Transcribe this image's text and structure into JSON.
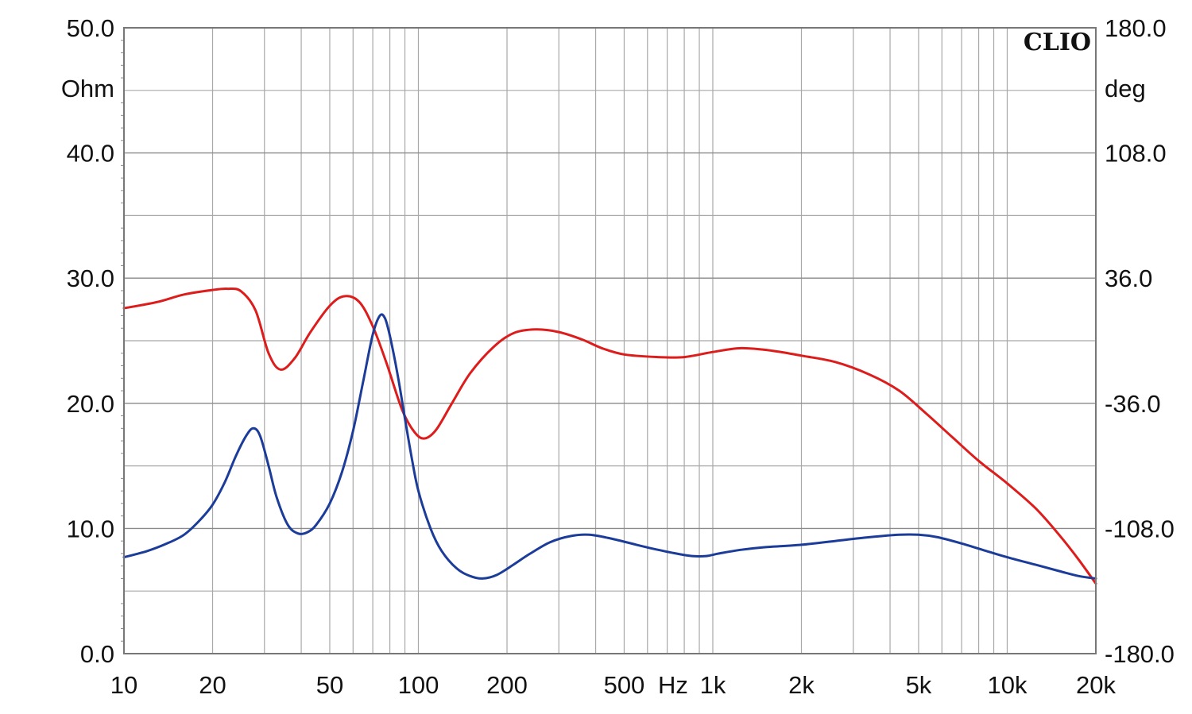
{
  "brand": "CLIO",
  "chart_data": {
    "type": "line",
    "title": "",
    "x_scale": "log",
    "xlim": [
      10,
      20000
    ],
    "x_ticks": [
      {
        "value": 10,
        "label": "10"
      },
      {
        "value": 20,
        "label": "20"
      },
      {
        "value": 50,
        "label": "50"
      },
      {
        "value": 100,
        "label": "100"
      },
      {
        "value": 200,
        "label": "200"
      },
      {
        "value": 500,
        "label": "500"
      },
      {
        "value": 1000,
        "label": "1k"
      },
      {
        "value": 2000,
        "label": "2k"
      },
      {
        "value": 5000,
        "label": "5k"
      },
      {
        "value": 10000,
        "label": "10k"
      },
      {
        "value": 20000,
        "label": "20k"
      }
    ],
    "x_unit_label": "Hz",
    "y_left": {
      "unit": "Ohm",
      "ylim": [
        0,
        50
      ],
      "ticks": [
        {
          "value": 0,
          "label": "0.0"
        },
        {
          "value": 10,
          "label": "10.0"
        },
        {
          "value": 20,
          "label": "20.0"
        },
        {
          "value": 30,
          "label": "30.0"
        },
        {
          "value": 40,
          "label": "40.0"
        },
        {
          "value": 50,
          "label": "50.0"
        }
      ],
      "minor_step": 5
    },
    "y_right": {
      "unit": "deg",
      "ylim": [
        -180,
        180
      ],
      "ticks": [
        {
          "value": -180,
          "label": "-180.0"
        },
        {
          "value": -108,
          "label": "-108.0"
        },
        {
          "value": -36,
          "label": "-36.0"
        },
        {
          "value": 36,
          "label": "36.0"
        },
        {
          "value": 108,
          "label": "108.0"
        },
        {
          "value": 180,
          "label": "180.0"
        }
      ]
    },
    "grid": true,
    "series": [
      {
        "color": "#dd1c1c",
        "axis": "right",
        "points": [
          [
            10,
            18.7
          ],
          [
            13,
            22.3
          ],
          [
            16,
            26.6
          ],
          [
            20,
            29.2
          ],
          [
            22.5,
            29.9
          ],
          [
            25,
            28.4
          ],
          [
            28,
            17.3
          ],
          [
            31,
            -7.2
          ],
          [
            34,
            -16.6
          ],
          [
            38,
            -10.1
          ],
          [
            43,
            5.0
          ],
          [
            50,
            20.1
          ],
          [
            56,
            25.6
          ],
          [
            63,
            22.3
          ],
          [
            70,
            8.3
          ],
          [
            78,
            -13.0
          ],
          [
            88,
            -39.6
          ],
          [
            97,
            -52.6
          ],
          [
            105,
            -56.2
          ],
          [
            115,
            -51.1
          ],
          [
            130,
            -36.0
          ],
          [
            150,
            -18.7
          ],
          [
            180,
            -3.6
          ],
          [
            210,
            4.3
          ],
          [
            250,
            6.5
          ],
          [
            300,
            5.0
          ],
          [
            360,
            0.7
          ],
          [
            420,
            -4.3
          ],
          [
            500,
            -7.9
          ],
          [
            650,
            -9.4
          ],
          [
            800,
            -9.4
          ],
          [
            1000,
            -6.5
          ],
          [
            1250,
            -4.3
          ],
          [
            1600,
            -5.8
          ],
          [
            2000,
            -8.6
          ],
          [
            2600,
            -12.2
          ],
          [
            3400,
            -19.4
          ],
          [
            4300,
            -28.8
          ],
          [
            5300,
            -41.8
          ],
          [
            6500,
            -55.4
          ],
          [
            8000,
            -69.1
          ],
          [
            10000,
            -82.1
          ],
          [
            12500,
            -96.5
          ],
          [
            15000,
            -111.6
          ],
          [
            17500,
            -126.0
          ],
          [
            20000,
            -139.7
          ]
        ]
      },
      {
        "color": "#1c3c9a",
        "axis": "left",
        "points": [
          [
            10,
            7.7
          ],
          [
            12,
            8.2
          ],
          [
            14,
            8.8
          ],
          [
            16,
            9.5
          ],
          [
            18,
            10.6
          ],
          [
            20,
            11.9
          ],
          [
            22,
            13.7
          ],
          [
            24,
            15.8
          ],
          [
            26,
            17.4
          ],
          [
            27.5,
            18.0
          ],
          [
            29,
            17.4
          ],
          [
            31,
            15.0
          ],
          [
            33,
            12.5
          ],
          [
            36,
            10.3
          ],
          [
            39,
            9.6
          ],
          [
            42,
            9.7
          ],
          [
            45,
            10.3
          ],
          [
            50,
            12.0
          ],
          [
            55,
            14.5
          ],
          [
            60,
            17.8
          ],
          [
            65,
            21.8
          ],
          [
            70,
            25.5
          ],
          [
            74,
            27.0
          ],
          [
            77,
            26.8
          ],
          [
            80,
            25.4
          ],
          [
            85,
            22.3
          ],
          [
            90,
            18.8
          ],
          [
            95,
            15.6
          ],
          [
            100,
            13.0
          ],
          [
            110,
            10.0
          ],
          [
            120,
            8.2
          ],
          [
            135,
            6.8
          ],
          [
            150,
            6.2
          ],
          [
            165,
            6.0
          ],
          [
            185,
            6.3
          ],
          [
            210,
            7.1
          ],
          [
            240,
            8.0
          ],
          [
            280,
            8.9
          ],
          [
            330,
            9.4
          ],
          [
            380,
            9.5
          ],
          [
            450,
            9.2
          ],
          [
            550,
            8.7
          ],
          [
            650,
            8.3
          ],
          [
            750,
            8.0
          ],
          [
            850,
            7.8
          ],
          [
            950,
            7.8
          ],
          [
            1050,
            8.0
          ],
          [
            1250,
            8.3
          ],
          [
            1500,
            8.5
          ],
          [
            2000,
            8.7
          ],
          [
            2600,
            9.0
          ],
          [
            3400,
            9.3
          ],
          [
            4300,
            9.5
          ],
          [
            5000,
            9.5
          ],
          [
            5800,
            9.3
          ],
          [
            7000,
            8.8
          ],
          [
            8500,
            8.2
          ],
          [
            10000,
            7.7
          ],
          [
            12500,
            7.1
          ],
          [
            15000,
            6.6
          ],
          [
            17500,
            6.2
          ],
          [
            20000,
            6.0
          ]
        ]
      }
    ]
  }
}
